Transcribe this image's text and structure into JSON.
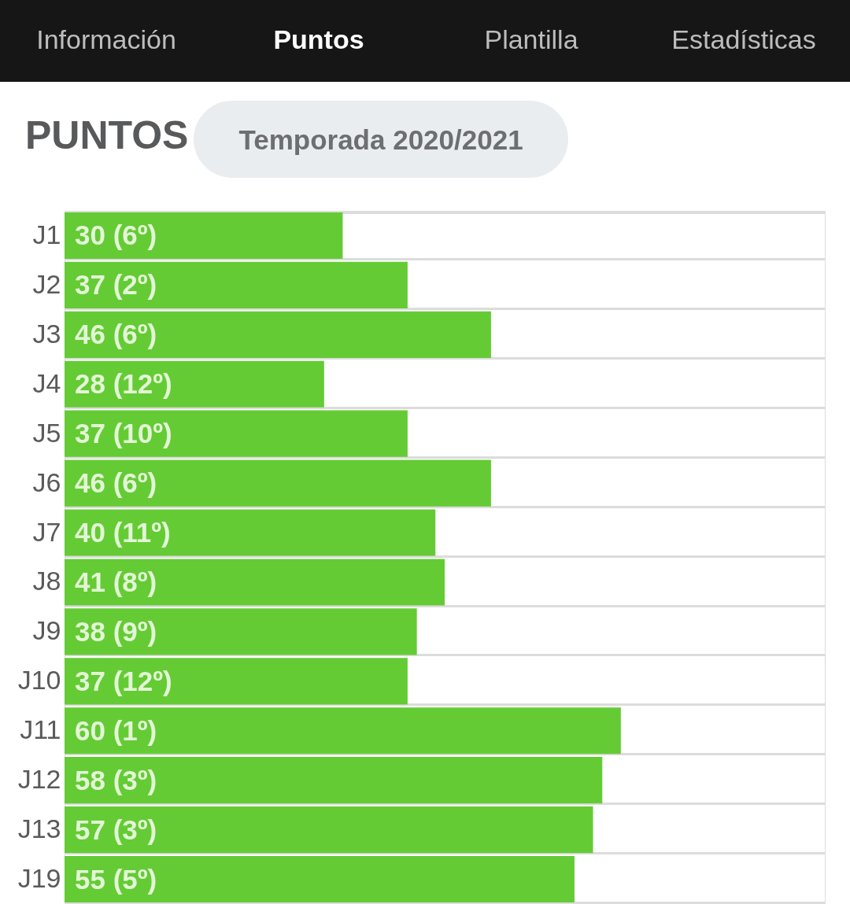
{
  "chart_data": {
    "type": "bar",
    "orientation": "horizontal",
    "title": "PUNTOS",
    "subtitle": "Temporada 2020/2021",
    "categories": [
      "J1",
      "J2",
      "J3",
      "J4",
      "J5",
      "J6",
      "J7",
      "J8",
      "J9",
      "J10",
      "J11",
      "J12",
      "J13",
      "J19"
    ],
    "values": [
      30,
      37,
      46,
      28,
      37,
      46,
      40,
      41,
      38,
      37,
      60,
      58,
      57,
      55
    ],
    "value_labels": [
      "30 (6º)",
      "37 (2º)",
      "46 (6º)",
      "28 (12º)",
      "37 (10º)",
      "46 (6º)",
      "40 (11º)",
      "41 (8º)",
      "38 (9º)",
      "37 (12º)",
      "60 (1º)",
      "58 (3º)",
      "57 (3º)",
      "55 (5º)"
    ],
    "color": "#64cb35",
    "xlim": [
      0,
      82
    ],
    "grid": "y",
    "tick_labels": "y",
    "annotations": [
      "Información",
      "Puntos",
      "Plantilla",
      "Estadísticas"
    ]
  }
}
